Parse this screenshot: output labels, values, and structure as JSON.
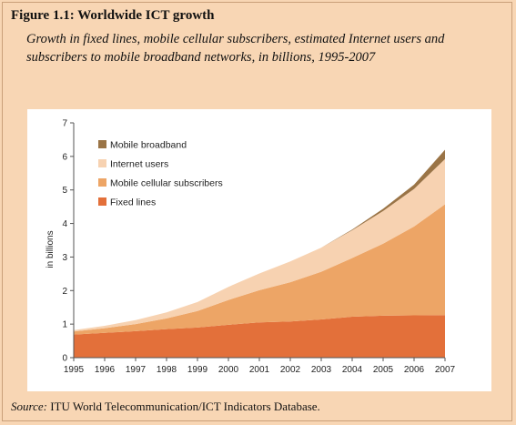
{
  "figure": {
    "title": "Figure 1.1: Worldwide ICT growth",
    "subtitle": "Growth in fixed lines, mobile cellular subscribers, estimated Internet users and subscribers to mobile broadband networks, in billions, 1995-2007",
    "source_label": "Source:",
    "source_text": " ITU World Telecommunication/ICT Indicators Database."
  },
  "chart_data": {
    "type": "area",
    "stacked": true,
    "x": [
      "1995",
      "1996",
      "1997",
      "1998",
      "1999",
      "2000",
      "2001",
      "2002",
      "2003",
      "2004",
      "2005",
      "2006",
      "2007"
    ],
    "ylabel": "in billions",
    "ylim": [
      0,
      7
    ],
    "yticks": [
      0,
      1,
      2,
      3,
      4,
      5,
      6,
      7
    ],
    "legend_position": "top-left",
    "series": [
      {
        "name": "Fixed lines",
        "color": "#e3703a",
        "values": [
          0.69,
          0.74,
          0.79,
          0.85,
          0.9,
          0.98,
          1.05,
          1.08,
          1.14,
          1.22,
          1.25,
          1.26,
          1.27
        ]
      },
      {
        "name": "Mobile cellular subscribers",
        "color": "#eda566",
        "values": [
          0.09,
          0.14,
          0.21,
          0.32,
          0.49,
          0.74,
          0.96,
          1.17,
          1.42,
          1.75,
          2.15,
          2.65,
          3.3
        ]
      },
      {
        "name": "Internet users",
        "color": "#f7d2b1",
        "values": [
          0.04,
          0.07,
          0.12,
          0.18,
          0.27,
          0.39,
          0.5,
          0.62,
          0.72,
          0.83,
          0.97,
          1.12,
          1.35
        ]
      },
      {
        "name": "Mobile broadband",
        "color": "#9a7446",
        "values": [
          0,
          0,
          0,
          0,
          0,
          0,
          0,
          0,
          0,
          0.02,
          0.07,
          0.13,
          0.28
        ]
      }
    ]
  }
}
